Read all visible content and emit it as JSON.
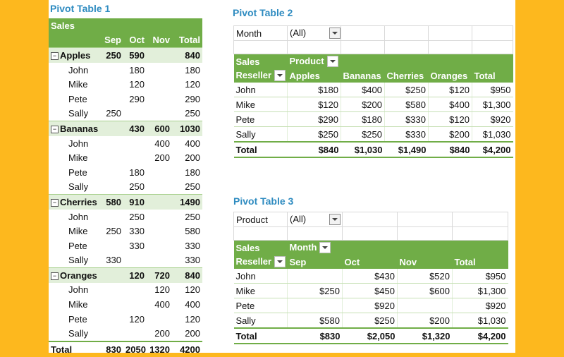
{
  "pt1": {
    "title": "Pivot Table 1",
    "header": {
      "label": "Sales",
      "cols": [
        "Sep",
        "Oct",
        "Nov",
        "Total"
      ]
    },
    "groups": [
      {
        "name": "Apples",
        "vals": [
          "250",
          "590",
          "",
          "840"
        ],
        "items": [
          {
            "name": "John",
            "vals": [
              "",
              "180",
              "",
              "180"
            ]
          },
          {
            "name": "Mike",
            "vals": [
              "",
              "120",
              "",
              "120"
            ]
          },
          {
            "name": "Pete",
            "vals": [
              "",
              "290",
              "",
              "290"
            ]
          },
          {
            "name": "Sally",
            "vals": [
              "250",
              "",
              "",
              "250"
            ]
          }
        ]
      },
      {
        "name": "Bananas",
        "vals": [
          "",
          "430",
          "600",
          "1030"
        ],
        "items": [
          {
            "name": "John",
            "vals": [
              "",
              "",
              "400",
              "400"
            ]
          },
          {
            "name": "Mike",
            "vals": [
              "",
              "",
              "200",
              "200"
            ]
          },
          {
            "name": "Pete",
            "vals": [
              "",
              "180",
              "",
              "180"
            ]
          },
          {
            "name": "Sally",
            "vals": [
              "",
              "250",
              "",
              "250"
            ]
          }
        ]
      },
      {
        "name": "Cherries",
        "vals": [
          "580",
          "910",
          "",
          "1490"
        ],
        "items": [
          {
            "name": "John",
            "vals": [
              "",
              "250",
              "",
              "250"
            ]
          },
          {
            "name": "Mike",
            "vals": [
              "250",
              "330",
              "",
              "580"
            ]
          },
          {
            "name": "Pete",
            "vals": [
              "",
              "330",
              "",
              "330"
            ]
          },
          {
            "name": "Sally",
            "vals": [
              "330",
              "",
              "",
              "330"
            ]
          }
        ]
      },
      {
        "name": "Oranges",
        "vals": [
          "",
          "120",
          "720",
          "840"
        ],
        "items": [
          {
            "name": "John",
            "vals": [
              "",
              "",
              "120",
              "120"
            ]
          },
          {
            "name": "Mike",
            "vals": [
              "",
              "",
              "400",
              "400"
            ]
          },
          {
            "name": "Pete",
            "vals": [
              "",
              "120",
              "",
              "120"
            ]
          },
          {
            "name": "Sally",
            "vals": [
              "",
              "",
              "200",
              "200"
            ]
          }
        ]
      }
    ],
    "total": {
      "label": "Total",
      "vals": [
        "830",
        "2050",
        "1320",
        "4200"
      ]
    },
    "collapse_symbol": "−"
  },
  "pt2": {
    "title": "Pivot Table 2",
    "filter": {
      "label": "Month",
      "value": "(All)"
    },
    "sales_label": "Sales",
    "col_field": "Product",
    "row_field": "Reseller",
    "cols": [
      "Apples",
      "Bananas",
      "Cherries",
      "Oranges",
      "Total"
    ],
    "rows": [
      {
        "name": "John",
        "vals": [
          "$180",
          "$400",
          "$250",
          "$120",
          "$950"
        ]
      },
      {
        "name": "Mike",
        "vals": [
          "$120",
          "$200",
          "$580",
          "$400",
          "$1,300"
        ]
      },
      {
        "name": "Pete",
        "vals": [
          "$290",
          "$180",
          "$330",
          "$120",
          "$920"
        ]
      },
      {
        "name": "Sally",
        "vals": [
          "$250",
          "$250",
          "$330",
          "$200",
          "$1,030"
        ]
      }
    ],
    "total": {
      "label": "Total",
      "vals": [
        "$840",
        "$1,030",
        "$1,490",
        "$840",
        "$4,200"
      ]
    }
  },
  "pt3": {
    "title": "Pivot Table 3",
    "filter": {
      "label": "Product",
      "value": "(All)"
    },
    "sales_label": "Sales",
    "col_field": "Month",
    "row_field": "Reseller",
    "cols": [
      "Sep",
      "Oct",
      "Nov",
      "Total"
    ],
    "rows": [
      {
        "name": "John",
        "vals": [
          "",
          "$430",
          "$520",
          "$950"
        ]
      },
      {
        "name": "Mike",
        "vals": [
          "$250",
          "$450",
          "$600",
          "$1,300"
        ]
      },
      {
        "name": "Pete",
        "vals": [
          "",
          "$920",
          "",
          "$920"
        ]
      },
      {
        "name": "Sally",
        "vals": [
          "$580",
          "$250",
          "$200",
          "$1,030"
        ]
      }
    ],
    "total": {
      "label": "Total",
      "vals": [
        "$830",
        "$2,050",
        "$1,320",
        "$4,200"
      ]
    }
  },
  "colors": {
    "accent_green": "#70AD47",
    "light_green": "#E2EFDA",
    "title_blue": "#2E8BC0",
    "background_orange": "#FDB81E"
  }
}
